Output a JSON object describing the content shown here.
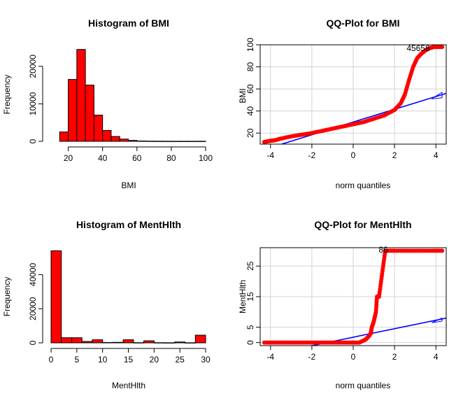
{
  "chart_data": [
    {
      "type": "bar",
      "title": "Histogram of BMI",
      "xlabel": "BMI",
      "ylabel": "Frequency",
      "xlim": [
        10,
        100
      ],
      "ylim": [
        0,
        25000
      ],
      "xticks": [
        "20",
        "40",
        "60",
        "80",
        "100"
      ],
      "yticks": [
        "0",
        "10000",
        "20000"
      ],
      "bins": [
        {
          "from": 15,
          "to": 20,
          "value": 2500
        },
        {
          "from": 20,
          "to": 25,
          "value": 16500
        },
        {
          "from": 25,
          "to": 30,
          "value": 24500
        },
        {
          "from": 30,
          "to": 35,
          "value": 15000
        },
        {
          "from": 35,
          "to": 40,
          "value": 7000
        },
        {
          "from": 40,
          "to": 45,
          "value": 2900
        },
        {
          "from": 45,
          "to": 50,
          "value": 1300
        },
        {
          "from": 50,
          "to": 55,
          "value": 600
        },
        {
          "from": 55,
          "to": 60,
          "value": 250
        },
        {
          "from": 60,
          "to": 65,
          "value": 100
        },
        {
          "from": 65,
          "to": 70,
          "value": 60
        },
        {
          "from": 70,
          "to": 75,
          "value": 40
        },
        {
          "from": 75,
          "to": 80,
          "value": 30
        },
        {
          "from": 80,
          "to": 85,
          "value": 20
        },
        {
          "from": 85,
          "to": 90,
          "value": 20
        },
        {
          "from": 90,
          "to": 95,
          "value": 20
        },
        {
          "from": 95,
          "to": 100,
          "value": 30
        }
      ],
      "bar_color": "#ff0000"
    },
    {
      "type": "scatter",
      "title": "QQ-Plot for BMI",
      "xlabel": "norm quantiles",
      "ylabel": "BMI",
      "xlim": [
        -4.5,
        4.5
      ],
      "ylim": [
        10,
        100
      ],
      "xticks": [
        "-4",
        "-2",
        "0",
        "2",
        "4"
      ],
      "yticks": [
        "20",
        "40",
        "60",
        "80",
        "100"
      ],
      "grid": true,
      "point_label": "45658",
      "points": [
        {
          "x": -4.3,
          "y": 12
        },
        {
          "x": -4.0,
          "y": 13
        },
        {
          "x": -3.8,
          "y": 13.5
        },
        {
          "x": -3.5,
          "y": 15
        },
        {
          "x": -3.0,
          "y": 17
        },
        {
          "x": -2.5,
          "y": 18.5
        },
        {
          "x": -2.0,
          "y": 20
        },
        {
          "x": -1.5,
          "y": 22
        },
        {
          "x": -1.0,
          "y": 24
        },
        {
          "x": -0.5,
          "y": 26
        },
        {
          "x": 0,
          "y": 28
        },
        {
          "x": 0.5,
          "y": 30
        },
        {
          "x": 1.0,
          "y": 33
        },
        {
          "x": 1.5,
          "y": 36
        },
        {
          "x": 2.0,
          "y": 41
        },
        {
          "x": 2.3,
          "y": 47
        },
        {
          "x": 2.5,
          "y": 55
        },
        {
          "x": 2.7,
          "y": 68
        },
        {
          "x": 2.9,
          "y": 80
        },
        {
          "x": 3.1,
          "y": 88
        },
        {
          "x": 3.3,
          "y": 92
        },
        {
          "x": 3.5,
          "y": 95
        },
        {
          "x": 3.7,
          "y": 97
        },
        {
          "x": 3.9,
          "y": 98
        },
        {
          "x": 4.1,
          "y": 98
        },
        {
          "x": 4.3,
          "y": 98
        }
      ],
      "ref_line": [
        {
          "x": -4.5,
          "y": 4
        },
        {
          "x": 4.5,
          "y": 56
        }
      ],
      "band_upper": [
        {
          "x": 3.8,
          "y": 51
        },
        {
          "x": 4.3,
          "y": 57
        }
      ],
      "band_lower": [
        {
          "x": 3.8,
          "y": 51
        },
        {
          "x": 4.3,
          "y": 52
        }
      ],
      "point_color": "#ff0000",
      "line_color": "#0000ff"
    },
    {
      "type": "bar",
      "title": "Histogram of MentHlth",
      "xlabel": "MentHlth",
      "ylabel": "Frequency",
      "xlim": [
        0,
        30
      ],
      "ylim": [
        0,
        55000
      ],
      "xticks": [
        "0",
        "5",
        "10",
        "15",
        "20",
        "25",
        "30"
      ],
      "yticks": [
        "0",
        "20000",
        "40000"
      ],
      "bins": [
        {
          "from": 0,
          "to": 2,
          "value": 54000
        },
        {
          "from": 2,
          "to": 4,
          "value": 3000
        },
        {
          "from": 4,
          "to": 6,
          "value": 3000
        },
        {
          "from": 6,
          "to": 8,
          "value": 800
        },
        {
          "from": 8,
          "to": 10,
          "value": 1800
        },
        {
          "from": 10,
          "to": 12,
          "value": 200
        },
        {
          "from": 12,
          "to": 14,
          "value": 300
        },
        {
          "from": 14,
          "to": 16,
          "value": 1800
        },
        {
          "from": 16,
          "to": 18,
          "value": 100
        },
        {
          "from": 18,
          "to": 20,
          "value": 1200
        },
        {
          "from": 20,
          "to": 22,
          "value": 100
        },
        {
          "from": 22,
          "to": 24,
          "value": 50
        },
        {
          "from": 24,
          "to": 26,
          "value": 500
        },
        {
          "from": 26,
          "to": 28,
          "value": 50
        },
        {
          "from": 28,
          "to": 30,
          "value": 4500
        }
      ],
      "bar_color": "#ff0000"
    },
    {
      "type": "scatter",
      "title": "QQ-Plot for MentHlth",
      "xlabel": "norm quantiles",
      "ylabel": "MentHlth",
      "xlim": [
        -4.5,
        4.5
      ],
      "ylim": [
        -1,
        31
      ],
      "xticks": [
        "-4",
        "-2",
        "0",
        "2",
        "4"
      ],
      "yticks": [
        "0",
        "5",
        "15",
        "25"
      ],
      "grid": true,
      "point_label": "86",
      "points": [
        {
          "x": -4.3,
          "y": 0
        },
        {
          "x": -3.8,
          "y": 0
        },
        {
          "x": -3.2,
          "y": 0
        },
        {
          "x": -2.6,
          "y": 0
        },
        {
          "x": -2.0,
          "y": 0
        },
        {
          "x": -1.4,
          "y": 0
        },
        {
          "x": -0.8,
          "y": 0
        },
        {
          "x": -0.2,
          "y": 0
        },
        {
          "x": 0.3,
          "y": 0
        },
        {
          "x": 0.6,
          "y": 1
        },
        {
          "x": 0.75,
          "y": 2
        },
        {
          "x": 0.85,
          "y": 3
        },
        {
          "x": 0.9,
          "y": 5
        },
        {
          "x": 1.0,
          "y": 7
        },
        {
          "x": 1.1,
          "y": 10
        },
        {
          "x": 1.15,
          "y": 15
        },
        {
          "x": 1.25,
          "y": 15
        },
        {
          "x": 1.35,
          "y": 20
        },
        {
          "x": 1.45,
          "y": 25
        },
        {
          "x": 1.55,
          "y": 30
        },
        {
          "x": 2.0,
          "y": 30
        },
        {
          "x": 2.6,
          "y": 30
        },
        {
          "x": 3.2,
          "y": 30
        },
        {
          "x": 3.8,
          "y": 30
        },
        {
          "x": 4.3,
          "y": 30
        }
      ],
      "ref_line": [
        {
          "x": -4.5,
          "y": -4.5
        },
        {
          "x": 4.5,
          "y": 8
        }
      ],
      "band_upper": [
        {
          "x": 3.8,
          "y": 6.5
        },
        {
          "x": 4.3,
          "y": 8
        }
      ],
      "band_lower": [
        {
          "x": 3.8,
          "y": 6.5
        },
        {
          "x": 4.3,
          "y": 7
        }
      ],
      "point_color": "#ff0000",
      "line_color": "#0000ff"
    }
  ]
}
